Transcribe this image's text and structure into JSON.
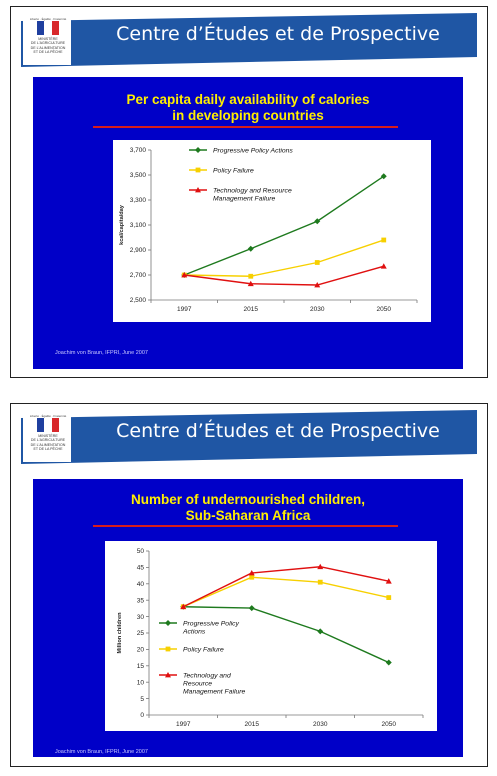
{
  "slides": [
    {
      "banner_title": "Centre d’Études et de Prospective",
      "logo": {
        "header": "Liberté · Égalité · Fraternité",
        "ministry": "MINISTÈRE\nDE L'AGRICULTURE\nDE L'ALIMENTATION\nET DE LA PÊCHE"
      },
      "title_line1": "Per capita daily availability of calories",
      "title_line2": "in developing countries",
      "credit": "Joachim von Braun, IFPRI, June 2007"
    },
    {
      "banner_title": "Centre d’Études et de Prospective",
      "logo": {
        "header": "Liberté · Égalité · Fraternité",
        "ministry": "MINISTÈRE\nDE L'AGRICULTURE\nDE L'ALIMENTATION\nET DE LA PÊCHE"
      },
      "title_line1": "Number of undernourished children,",
      "title_line2": "Sub-Saharan Africa",
      "credit": "Joachim von Braun, IFPRI, June 2007"
    }
  ],
  "colors": {
    "banner": "#1f56a4",
    "panel": "#0000c8",
    "title": "#ffee00",
    "underline": "#d61d1d"
  },
  "chart_data": [
    {
      "type": "line",
      "title": "Per capita daily availability of calories in developing countries",
      "xlabel": "",
      "ylabel": "kcal/capita/day",
      "categories": [
        "1997",
        "2015",
        "2030",
        "2050"
      ],
      "ylim": [
        2500,
        3700
      ],
      "yticks": [
        2500,
        2700,
        2900,
        3100,
        3300,
        3500,
        3700
      ],
      "ytick_labels": [
        "2,500",
        "2,700",
        "2,900",
        "3,100",
        "3,300",
        "3,500",
        "3,700"
      ],
      "legend_position": "top-left",
      "series": [
        {
          "name": "Progressive Policy Actions",
          "values": [
            2700,
            2910,
            3130,
            3490
          ],
          "color": "#1e7a1e",
          "marker": "diamond"
        },
        {
          "name": "Policy Failure",
          "values": [
            2700,
            2690,
            2800,
            2980
          ],
          "color": "#f7d000",
          "marker": "square"
        },
        {
          "name": "Technology and Resource\nManagement Failure",
          "values": [
            2700,
            2630,
            2620,
            2770
          ],
          "color": "#e01010",
          "marker": "triangle"
        }
      ]
    },
    {
      "type": "line",
      "title": "Number of undernourished children, Sub-Saharan Africa",
      "xlabel": "",
      "ylabel": "Million children",
      "categories": [
        "1997",
        "2015",
        "2030",
        "2050"
      ],
      "ylim": [
        0,
        50
      ],
      "yticks": [
        0,
        5,
        10,
        15,
        20,
        25,
        30,
        35,
        40,
        45,
        50
      ],
      "ytick_labels": [
        "0",
        "5",
        "10",
        "15",
        "20",
        "25",
        "30",
        "35",
        "40",
        "45",
        "50"
      ],
      "legend_position": "bottom-left",
      "series": [
        {
          "name": "Progressive Policy\nActions",
          "values": [
            33,
            32.6,
            25.5,
            16
          ],
          "color": "#1e7a1e",
          "marker": "diamond"
        },
        {
          "name": "Policy Failure",
          "values": [
            33,
            42,
            40.5,
            35.8
          ],
          "color": "#f7d000",
          "marker": "square"
        },
        {
          "name": "Technology and\nResource\nManagement Failure",
          "values": [
            33,
            43.3,
            45.2,
            40.8
          ],
          "color": "#e01010",
          "marker": "triangle"
        }
      ]
    }
  ]
}
